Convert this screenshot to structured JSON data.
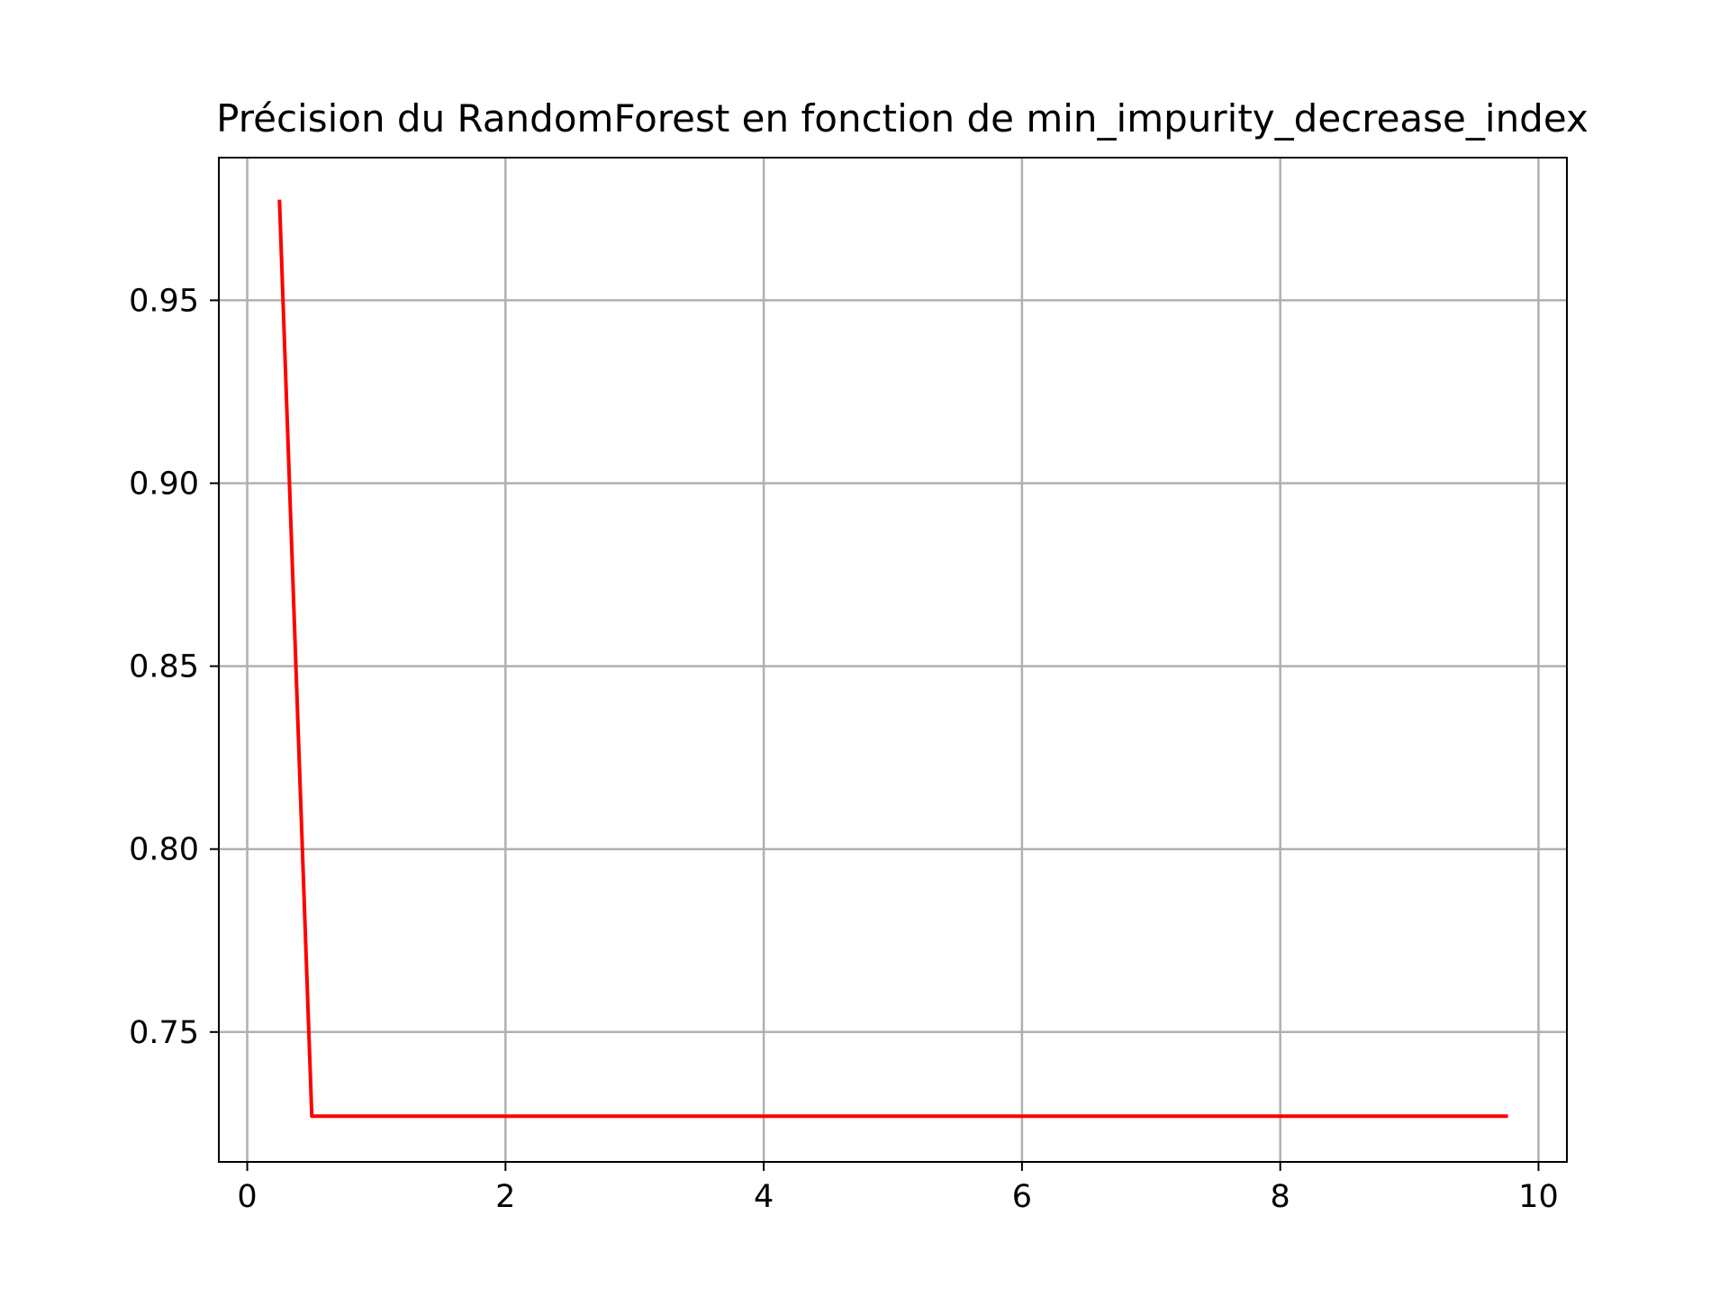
{
  "chart_data": {
    "type": "line",
    "title": "Précision du RandomForest en fonction de min_impurity_decrease_index",
    "xlabel": "",
    "ylabel": "",
    "xlim": [
      -0.22,
      10.22
    ],
    "ylim": [
      0.7145,
      0.989
    ],
    "xticks": [
      0,
      2,
      4,
      6,
      8,
      10
    ],
    "xtick_labels": [
      "0",
      "2",
      "4",
      "6",
      "8",
      "10"
    ],
    "yticks": [
      0.75,
      0.8,
      0.85,
      0.9,
      0.95
    ],
    "ytick_labels": [
      "0.75",
      "0.80",
      "0.85",
      "0.90",
      "0.95"
    ],
    "grid": true,
    "series": [
      {
        "color": "#ff0000",
        "x": [
          0.25,
          0.5,
          0.75,
          1,
          1.25,
          1.5,
          1.75,
          2,
          2.25,
          2.5,
          2.75,
          3,
          3.25,
          3.5,
          3.75,
          4,
          4.25,
          4.5,
          4.75,
          5,
          5.25,
          5.5,
          5.75,
          6,
          6.25,
          6.5,
          6.75,
          7,
          7.25,
          7.5,
          7.75,
          8,
          8.25,
          8.5,
          8.75,
          9,
          9.25,
          9.5,
          9.75
        ],
        "y": [
          0.977,
          0.727,
          0.727,
          0.727,
          0.727,
          0.727,
          0.727,
          0.727,
          0.727,
          0.727,
          0.727,
          0.727,
          0.727,
          0.727,
          0.727,
          0.727,
          0.727,
          0.727,
          0.727,
          0.727,
          0.727,
          0.727,
          0.727,
          0.727,
          0.727,
          0.727,
          0.727,
          0.727,
          0.727,
          0.727,
          0.727,
          0.727,
          0.727,
          0.727,
          0.727,
          0.727,
          0.727,
          0.727,
          0.727
        ]
      }
    ]
  }
}
